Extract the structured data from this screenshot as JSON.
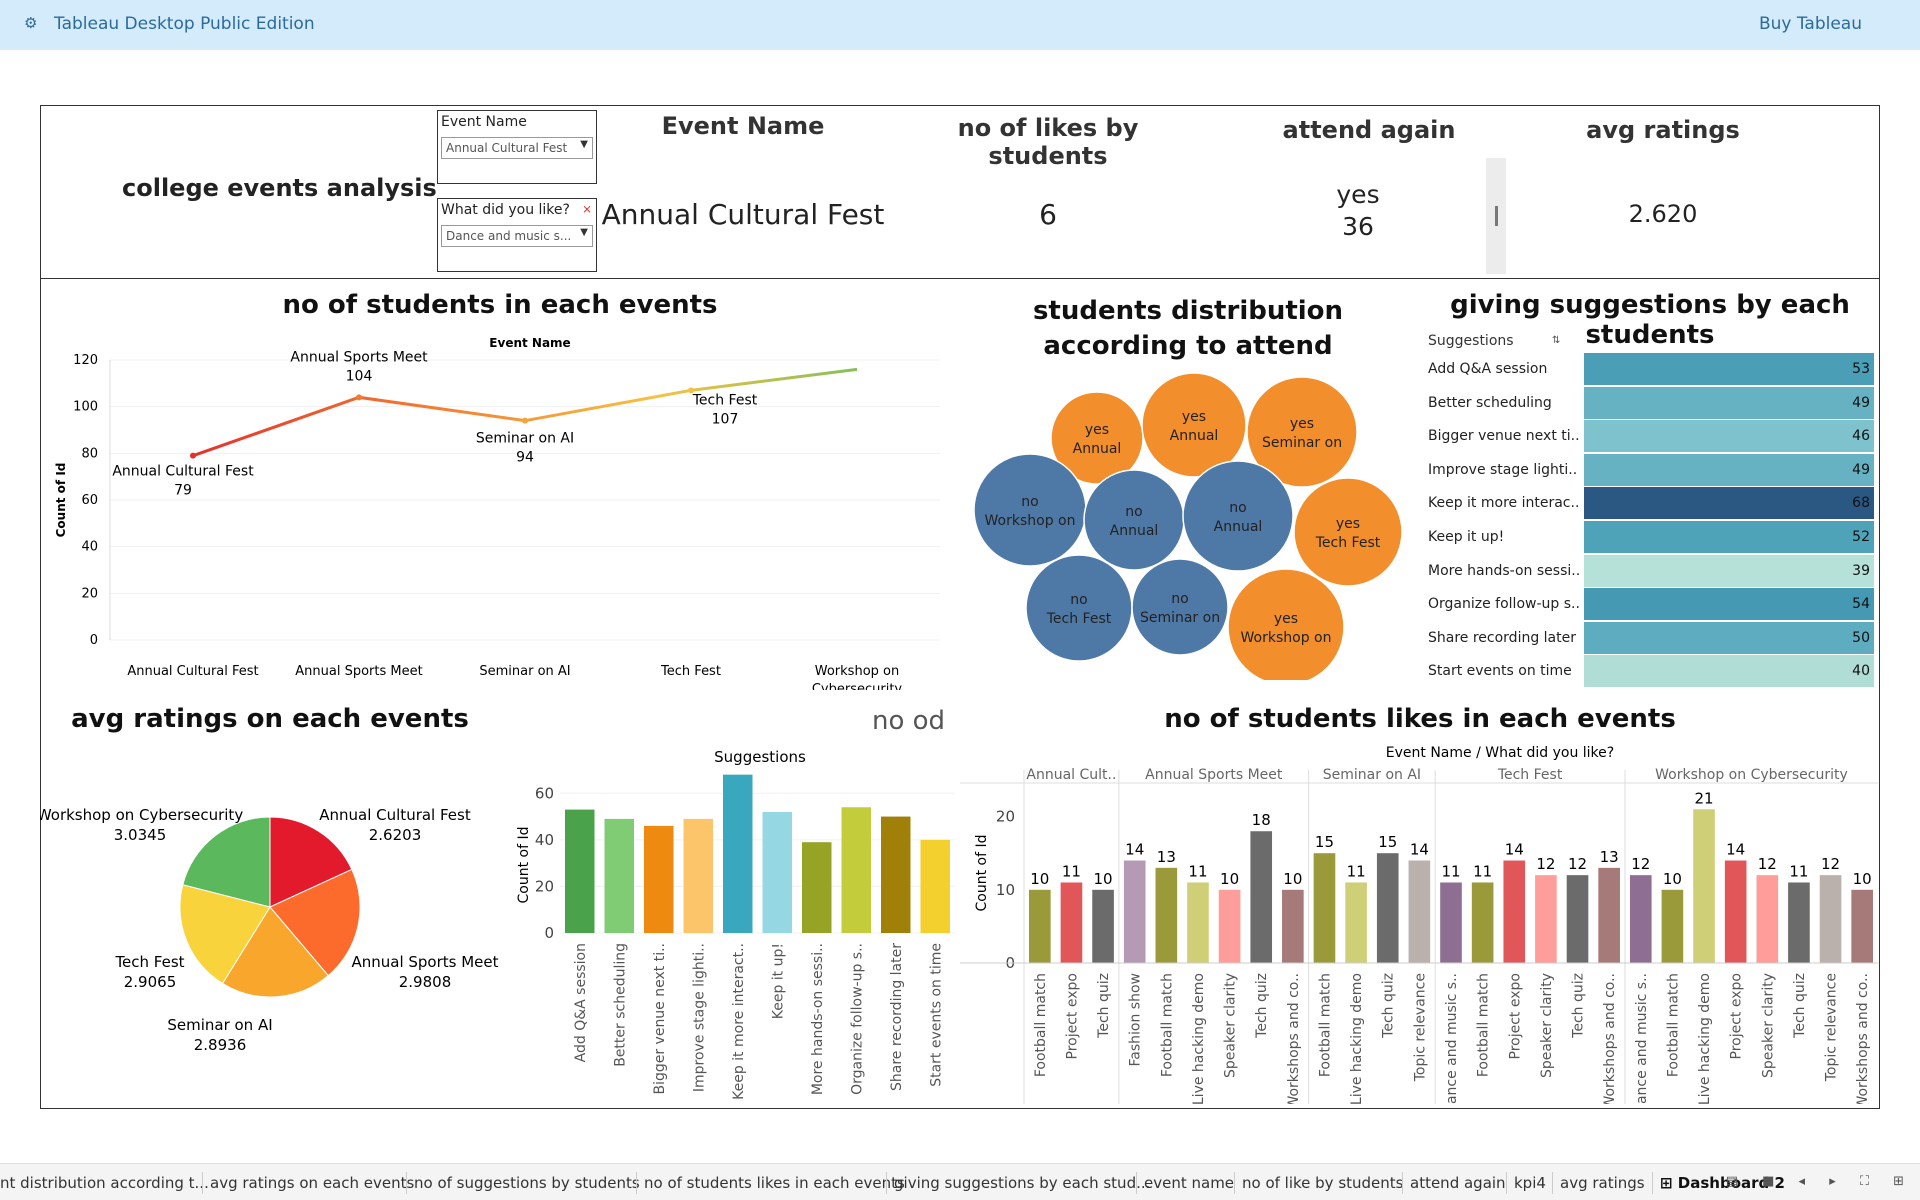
{
  "topbar": {
    "icon": "tableau-icon",
    "title": "Tableau Desktop Public Edition",
    "buy_label": "Buy Tableau"
  },
  "dashboard": {
    "title": "college events analysis",
    "filters": [
      {
        "label": "Event Name",
        "value": "Annual Cultural Fest"
      },
      {
        "label": "What did you like?",
        "value": "Dance and music s..."
      }
    ],
    "kpis": [
      {
        "header": "Event Name",
        "value": "Annual Cultural Fest"
      },
      {
        "header": "no of likes by students",
        "value": "6"
      },
      {
        "header": "attend again",
        "value_top": "yes",
        "value": "36"
      },
      {
        "header": "avg ratings",
        "value": "2.620"
      }
    ]
  },
  "line_panel": {
    "title": "no of students in each events",
    "legend_header": "Event Name",
    "annotations": [
      {
        "name": "Annual Cultural Fest",
        "value": "79"
      },
      {
        "name": "Annual Sports Meet",
        "value": "104"
      },
      {
        "name": "Seminar on AI",
        "value": "94"
      },
      {
        "name": "Tech Fest",
        "value": "107"
      }
    ]
  },
  "bubble_panel": {
    "title": "students distribution according to attend"
  },
  "suggestions_table": {
    "title": "giving suggestions by each students",
    "header": "Suggestions",
    "rows": [
      {
        "label": "Add Q&A session",
        "value": "53",
        "color": "#4a9fb6"
      },
      {
        "label": "Better scheduling",
        "value": "49",
        "color": "#66b2c3"
      },
      {
        "label": "Bigger venue next ti..",
        "value": "46",
        "color": "#7ec2cd"
      },
      {
        "label": "Improve stage lighti..",
        "value": "49",
        "color": "#66b2c3"
      },
      {
        "label": "Keep it more interac..",
        "value": "68",
        "color": "#2b5883"
      },
      {
        "label": "Keep it up!",
        "value": "52",
        "color": "#4fa3b9"
      },
      {
        "label": "More hands-on sessi..",
        "value": "39",
        "color": "#b6e1d9"
      },
      {
        "label": "Organize follow-up s..",
        "value": "54",
        "color": "#4599b3"
      },
      {
        "label": "Share recording later",
        "value": "50",
        "color": "#5eacbf"
      },
      {
        "label": "Start events on time",
        "value": "40",
        "color": "#b0ddd5"
      }
    ]
  },
  "pie_panel": {
    "title": "avg ratings on each events"
  },
  "no_od_label": "no od",
  "likes_panel": {
    "title": "no of students likes in each events",
    "header": "Event Name  /  What did you like?"
  },
  "chart_data": [
    {
      "type": "line",
      "title": "no of students in each events",
      "xlabel": "",
      "ylabel": "Count of Id",
      "categories": [
        "Annual Cultural Fest",
        "Annual Sports Meet",
        "Seminar on AI",
        "Tech Fest",
        "Workshop on Cybersecurity"
      ],
      "values": [
        79,
        104,
        94,
        107,
        116
      ],
      "ylim": [
        0,
        120
      ],
      "yticks": [
        0,
        20,
        40,
        60,
        80,
        100,
        120
      ]
    },
    {
      "type": "scatter",
      "title": "students distribution according to attend",
      "bubbles": [
        {
          "attend": "yes",
          "event": "Annual",
          "color": "#f28e2b"
        },
        {
          "attend": "yes",
          "event": "Annual",
          "color": "#f28e2b"
        },
        {
          "attend": "yes",
          "event": "Seminar on",
          "color": "#f28e2b"
        },
        {
          "attend": "no",
          "event": "Workshop on",
          "color": "#4e79a7"
        },
        {
          "attend": "no",
          "event": "Annual",
          "color": "#4e79a7"
        },
        {
          "attend": "no",
          "event": "Annual",
          "color": "#4e79a7"
        },
        {
          "attend": "yes",
          "event": "Tech Fest",
          "color": "#f28e2b"
        },
        {
          "attend": "no",
          "event": "Tech Fest",
          "color": "#4e79a7"
        },
        {
          "attend": "no",
          "event": "Seminar on",
          "color": "#4e79a7"
        },
        {
          "attend": "yes",
          "event": "Workshop on",
          "color": "#f28e2b"
        }
      ]
    },
    {
      "type": "pie",
      "title": "avg ratings on each events",
      "slices": [
        {
          "name": "Annual Cultural Fest",
          "value": 2.6203,
          "label": "2.6203",
          "color": "#e31a2c"
        },
        {
          "name": "Annual Sports Meet",
          "value": 2.9808,
          "label": "2.9808",
          "color": "#fd6b2c"
        },
        {
          "name": "Seminar on AI",
          "value": 2.8936,
          "label": "2.8936",
          "color": "#f9a62d"
        },
        {
          "name": "Tech Fest",
          "value": 2.9065,
          "label": "2.9065",
          "color": "#f9d33c"
        },
        {
          "name": "Workshop on Cybersecurity",
          "value": 3.0345,
          "label": "3.0345",
          "color": "#5cb85c"
        }
      ]
    },
    {
      "type": "bar",
      "title": "Suggestions",
      "ylabel": "Count of Id",
      "ylim": [
        0,
        70
      ],
      "yticks": [
        0,
        20,
        40,
        60
      ],
      "categories": [
        "Add Q&A session",
        "Better scheduling",
        "Bigger venue next ti..",
        "Improve stage lighti..",
        "Keep it more interact..",
        "Keep it up!",
        "More hands-on sessi..",
        "Organize follow-up s..",
        "Share recording later",
        "Start events on time"
      ],
      "values": [
        53,
        49,
        46,
        49,
        68,
        52,
        39,
        54,
        50,
        40
      ],
      "colors": [
        "#4aa24a",
        "#7fcc74",
        "#ef8a10",
        "#fdc56a",
        "#39a7bd",
        "#95d7e3",
        "#97a324",
        "#c3cc3a",
        "#a1800a",
        "#f3d02d"
      ]
    },
    {
      "type": "bar",
      "title": "no of students likes in each events",
      "ylabel": "Count of Id",
      "ylim": [
        0,
        25
      ],
      "yticks": [
        0,
        10,
        20
      ],
      "groups": [
        {
          "name": "Annual Cult..",
          "bars": [
            {
              "label": "Football match",
              "value": 10,
              "color": "#9a9a3a"
            },
            {
              "label": "Project expo",
              "value": 11,
              "color": "#e15759"
            },
            {
              "label": "Tech quiz",
              "value": 10,
              "color": "#6b6b6b"
            }
          ]
        },
        {
          "name": "Annual Sports Meet",
          "bars": [
            {
              "label": "Fashion show",
              "value": 14,
              "color": "#b49ab5"
            },
            {
              "label": "Football match",
              "value": 13,
              "color": "#9a9a3a"
            },
            {
              "label": "Live hacking demo",
              "value": 11,
              "color": "#cfcf78"
            },
            {
              "label": "Speaker clarity",
              "value": 10,
              "color": "#ff9d9a"
            },
            {
              "label": "Tech quiz",
              "value": 18,
              "color": "#6b6b6b"
            },
            {
              "label": "Workshops and co..",
              "value": 10,
              "color": "#a57a78"
            }
          ]
        },
        {
          "name": "Seminar on AI",
          "bars": [
            {
              "label": "Football match",
              "value": 15,
              "color": "#9a9a3a"
            },
            {
              "label": "Live hacking demo",
              "value": 11,
              "color": "#cfcf78"
            },
            {
              "label": "Tech quiz",
              "value": 15,
              "color": "#6b6b6b"
            },
            {
              "label": "Topic relevance",
              "value": 14,
              "color": "#bab0ac"
            }
          ]
        },
        {
          "name": "Tech Fest",
          "bars": [
            {
              "label": "Dance and music s..",
              "value": 11,
              "color": "#8e6f93"
            },
            {
              "label": "Football match",
              "value": 11,
              "color": "#9a9a3a"
            },
            {
              "label": "Project expo",
              "value": 14,
              "color": "#e15759"
            },
            {
              "label": "Speaker clarity",
              "value": 12,
              "color": "#ff9d9a"
            },
            {
              "label": "Tech quiz",
              "value": 12,
              "color": "#6b6b6b"
            },
            {
              "label": "Workshops and co..",
              "value": 13,
              "color": "#a57a78"
            }
          ]
        },
        {
          "name": "Workshop on Cybersecurity",
          "bars": [
            {
              "label": "Dance and music s..",
              "value": 12,
              "color": "#8e6f93"
            },
            {
              "label": "Football match",
              "value": 10,
              "color": "#9a9a3a"
            },
            {
              "label": "Live hacking demo",
              "value": 21,
              "color": "#cfcf78"
            },
            {
              "label": "Project expo",
              "value": 14,
              "color": "#e15759"
            },
            {
              "label": "Speaker clarity",
              "value": 12,
              "color": "#ff9d9a"
            },
            {
              "label": "Tech quiz",
              "value": 11,
              "color": "#6b6b6b"
            },
            {
              "label": "Topic relevance",
              "value": 12,
              "color": "#bab0ac"
            },
            {
              "label": "Workshops and co..",
              "value": 10,
              "color": "#a57a78"
            }
          ]
        }
      ]
    }
  ],
  "tabs": [
    {
      "label": "nt distribution according t..."
    },
    {
      "label": "avg ratings on each events"
    },
    {
      "label": "no of suggestions by students"
    },
    {
      "label": "no of students likes in each events"
    },
    {
      "label": "giving suggestions by each stud..."
    },
    {
      "label": "event name"
    },
    {
      "label": "no of like by students"
    },
    {
      "label": "attend again"
    },
    {
      "label": "kpi4"
    },
    {
      "label": "avg ratings"
    },
    {
      "label": "Dashboard 2",
      "active": true
    }
  ]
}
